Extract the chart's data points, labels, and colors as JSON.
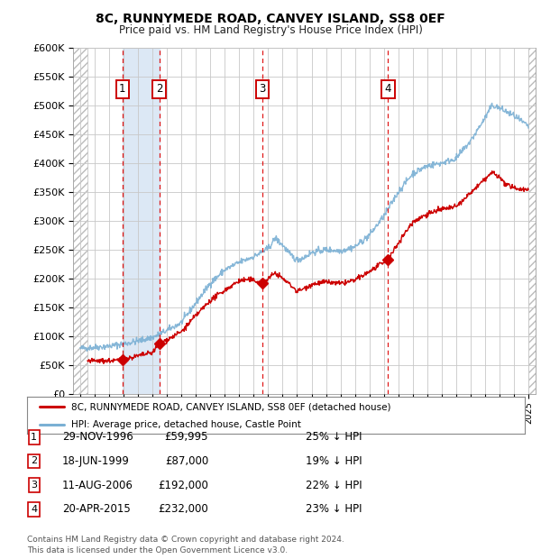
{
  "title1": "8C, RUNNYMEDE ROAD, CANVEY ISLAND, SS8 0EF",
  "title2": "Price paid vs. HM Land Registry's House Price Index (HPI)",
  "ylim": [
    0,
    600000
  ],
  "yticks": [
    0,
    50000,
    100000,
    150000,
    200000,
    250000,
    300000,
    350000,
    400000,
    450000,
    500000,
    550000,
    600000
  ],
  "xlim_start": 1993.5,
  "xlim_end": 2025.5,
  "bg_color": "#ffffff",
  "grid_color": "#c8c8c8",
  "hpi_line_color": "#7ab0d4",
  "price_line_color": "#cc0000",
  "sale_marker_color": "#cc0000",
  "dashed_line_color": "#dd0000",
  "shade_color": "#dce8f5",
  "legend_line1": "8C, RUNNYMEDE ROAD, CANVEY ISLAND, SS8 0EF (detached house)",
  "legend_line2": "HPI: Average price, detached house, Castle Point",
  "footer1": "Contains HM Land Registry data © Crown copyright and database right 2024.",
  "footer2": "This data is licensed under the Open Government Licence v3.0.",
  "sales": [
    {
      "num": 1,
      "date_year": 1996.91,
      "price": 59995,
      "label": "29-NOV-1996",
      "price_label": "£59,995",
      "pct": "25%",
      "dir": "↓"
    },
    {
      "num": 2,
      "date_year": 1999.46,
      "price": 87000,
      "label": "18-JUN-1999",
      "price_label": "£87,000",
      "pct": "19%",
      "dir": "↓"
    },
    {
      "num": 3,
      "date_year": 2006.61,
      "price": 192000,
      "label": "11-AUG-2006",
      "price_label": "£192,000",
      "pct": "22%",
      "dir": "↓"
    },
    {
      "num": 4,
      "date_year": 2015.3,
      "price": 232000,
      "label": "20-APR-2015",
      "price_label": "£232,000",
      "pct": "23%",
      "dir": "↓"
    }
  ],
  "shade_regions": [
    [
      1996.91,
      1999.46
    ]
  ],
  "hpi_anchors": [
    [
      1994.0,
      79000
    ],
    [
      1995.0,
      81000
    ],
    [
      1996.0,
      83000
    ],
    [
      1997.0,
      87000
    ],
    [
      1998.0,
      92000
    ],
    [
      1999.0,
      98000
    ],
    [
      2000.0,
      110000
    ],
    [
      2001.0,
      124000
    ],
    [
      2002.0,
      158000
    ],
    [
      2003.0,
      192000
    ],
    [
      2004.0,
      215000
    ],
    [
      2005.0,
      228000
    ],
    [
      2006.0,
      238000
    ],
    [
      2006.5,
      245000
    ],
    [
      2007.0,
      252000
    ],
    [
      2007.5,
      270000
    ],
    [
      2008.0,
      258000
    ],
    [
      2008.5,
      242000
    ],
    [
      2009.0,
      232000
    ],
    [
      2009.5,
      237000
    ],
    [
      2010.0,
      245000
    ],
    [
      2011.0,
      250000
    ],
    [
      2012.0,
      248000
    ],
    [
      2013.0,
      255000
    ],
    [
      2014.0,
      275000
    ],
    [
      2015.0,
      308000
    ],
    [
      2016.0,
      350000
    ],
    [
      2017.0,
      382000
    ],
    [
      2018.0,
      395000
    ],
    [
      2019.0,
      400000
    ],
    [
      2020.0,
      408000
    ],
    [
      2021.0,
      438000
    ],
    [
      2022.0,
      478000
    ],
    [
      2022.5,
      500000
    ],
    [
      2023.0,
      495000
    ],
    [
      2024.0,
      482000
    ],
    [
      2025.0,
      463000
    ]
  ],
  "price_anchors": [
    [
      1994.5,
      57000
    ],
    [
      1995.5,
      57500
    ],
    [
      1996.5,
      58000
    ],
    [
      1996.91,
      59995
    ],
    [
      1997.3,
      62000
    ],
    [
      1998.0,
      66000
    ],
    [
      1999.0,
      72000
    ],
    [
      1999.46,
      87000
    ],
    [
      2000.0,
      94000
    ],
    [
      2001.0,
      108000
    ],
    [
      2002.0,
      136000
    ],
    [
      2003.0,
      162000
    ],
    [
      2004.0,
      180000
    ],
    [
      2005.0,
      196000
    ],
    [
      2005.5,
      198000
    ],
    [
      2006.0,
      197000
    ],
    [
      2006.61,
      192000
    ],
    [
      2007.0,
      200000
    ],
    [
      2007.5,
      210000
    ],
    [
      2008.0,
      200000
    ],
    [
      2008.5,
      190000
    ],
    [
      2009.0,
      178000
    ],
    [
      2009.5,
      183000
    ],
    [
      2010.0,
      190000
    ],
    [
      2011.0,
      194000
    ],
    [
      2012.0,
      191000
    ],
    [
      2013.0,
      197000
    ],
    [
      2014.0,
      212000
    ],
    [
      2015.0,
      228000
    ],
    [
      2015.3,
      232000
    ],
    [
      2016.0,
      262000
    ],
    [
      2017.0,
      298000
    ],
    [
      2018.0,
      312000
    ],
    [
      2019.0,
      320000
    ],
    [
      2020.0,
      324000
    ],
    [
      2021.0,
      348000
    ],
    [
      2022.0,
      372000
    ],
    [
      2022.5,
      384000
    ],
    [
      2023.0,
      375000
    ],
    [
      2023.5,
      362000
    ],
    [
      2024.0,
      357000
    ],
    [
      2025.0,
      354000
    ]
  ]
}
